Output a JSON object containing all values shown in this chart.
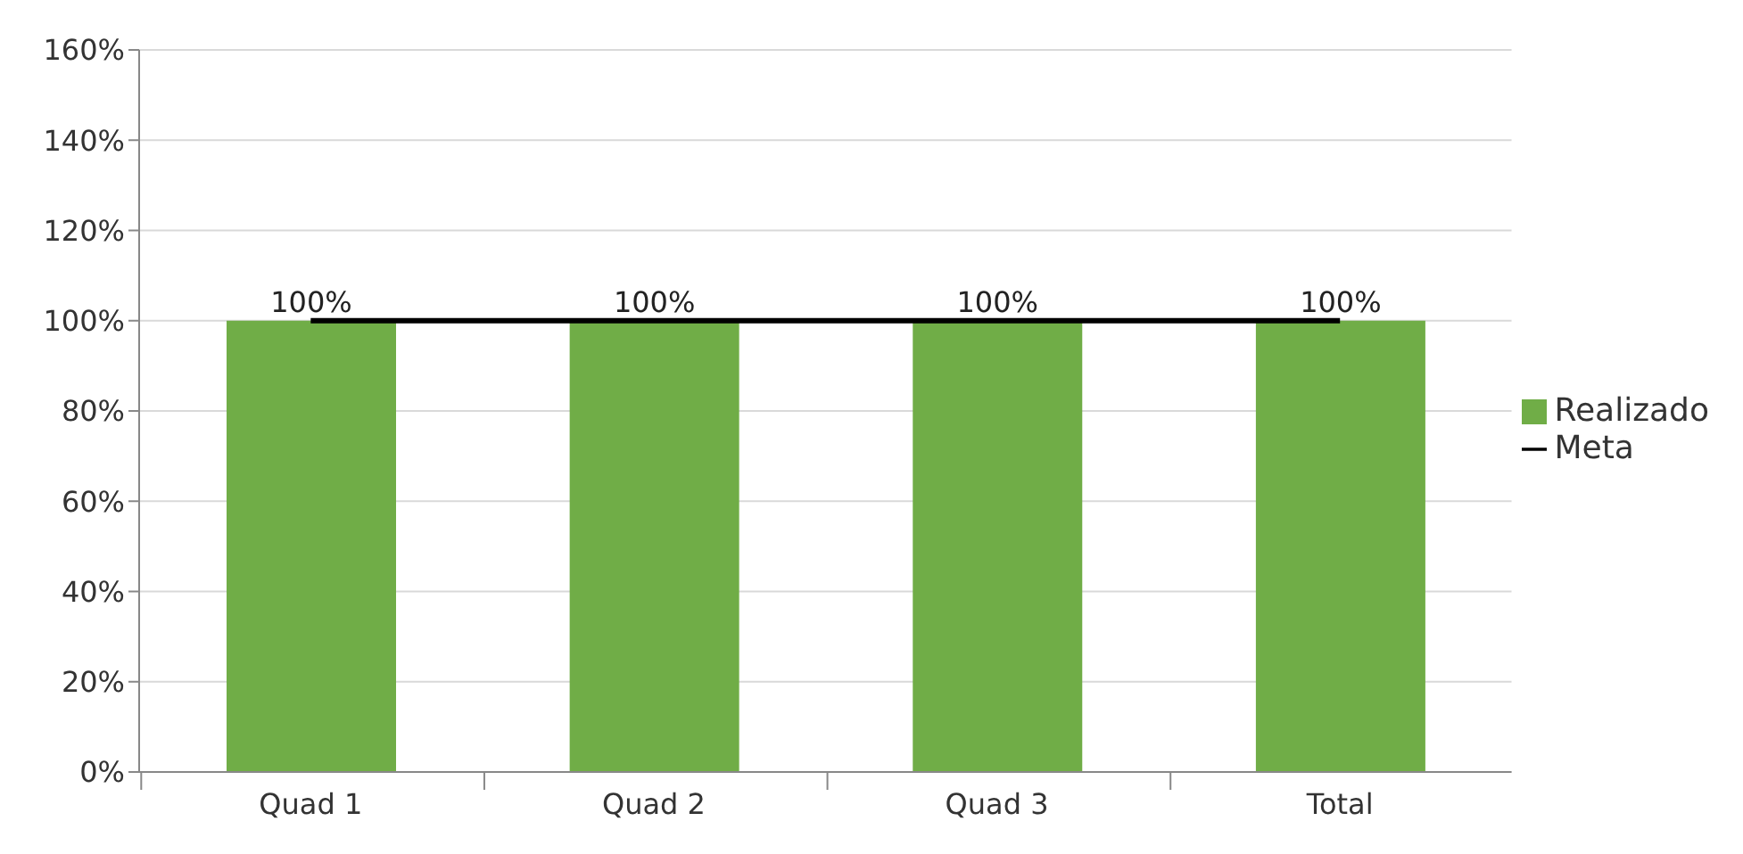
{
  "chart_data": {
    "type": "bar",
    "categories": [
      "Quad 1",
      "Quad 2",
      "Quad 3",
      "Total"
    ],
    "series": [
      {
        "name": "Realizado",
        "color": "#70ad47",
        "values": [
          100,
          100,
          100,
          100
        ],
        "value_labels": [
          "100%",
          "100%",
          "100%",
          "100%"
        ]
      },
      {
        "name": "Meta",
        "type": "line",
        "color": "#000000",
        "values": [
          100,
          100,
          100,
          100
        ],
        "marker": "none"
      }
    ],
    "ylim": [
      0,
      160
    ],
    "yticks": [
      {
        "value": 0,
        "label": "0%"
      },
      {
        "value": 20,
        "label": "20%"
      },
      {
        "value": 40,
        "label": "40%"
      },
      {
        "value": 60,
        "label": "60%"
      },
      {
        "value": 80,
        "label": "80%"
      },
      {
        "value": 100,
        "label": "100%"
      },
      {
        "value": 120,
        "label": "120%"
      },
      {
        "value": 140,
        "label": "140%"
      },
      {
        "value": 160,
        "label": "160%"
      }
    ],
    "grid": "y",
    "legend": "right"
  }
}
